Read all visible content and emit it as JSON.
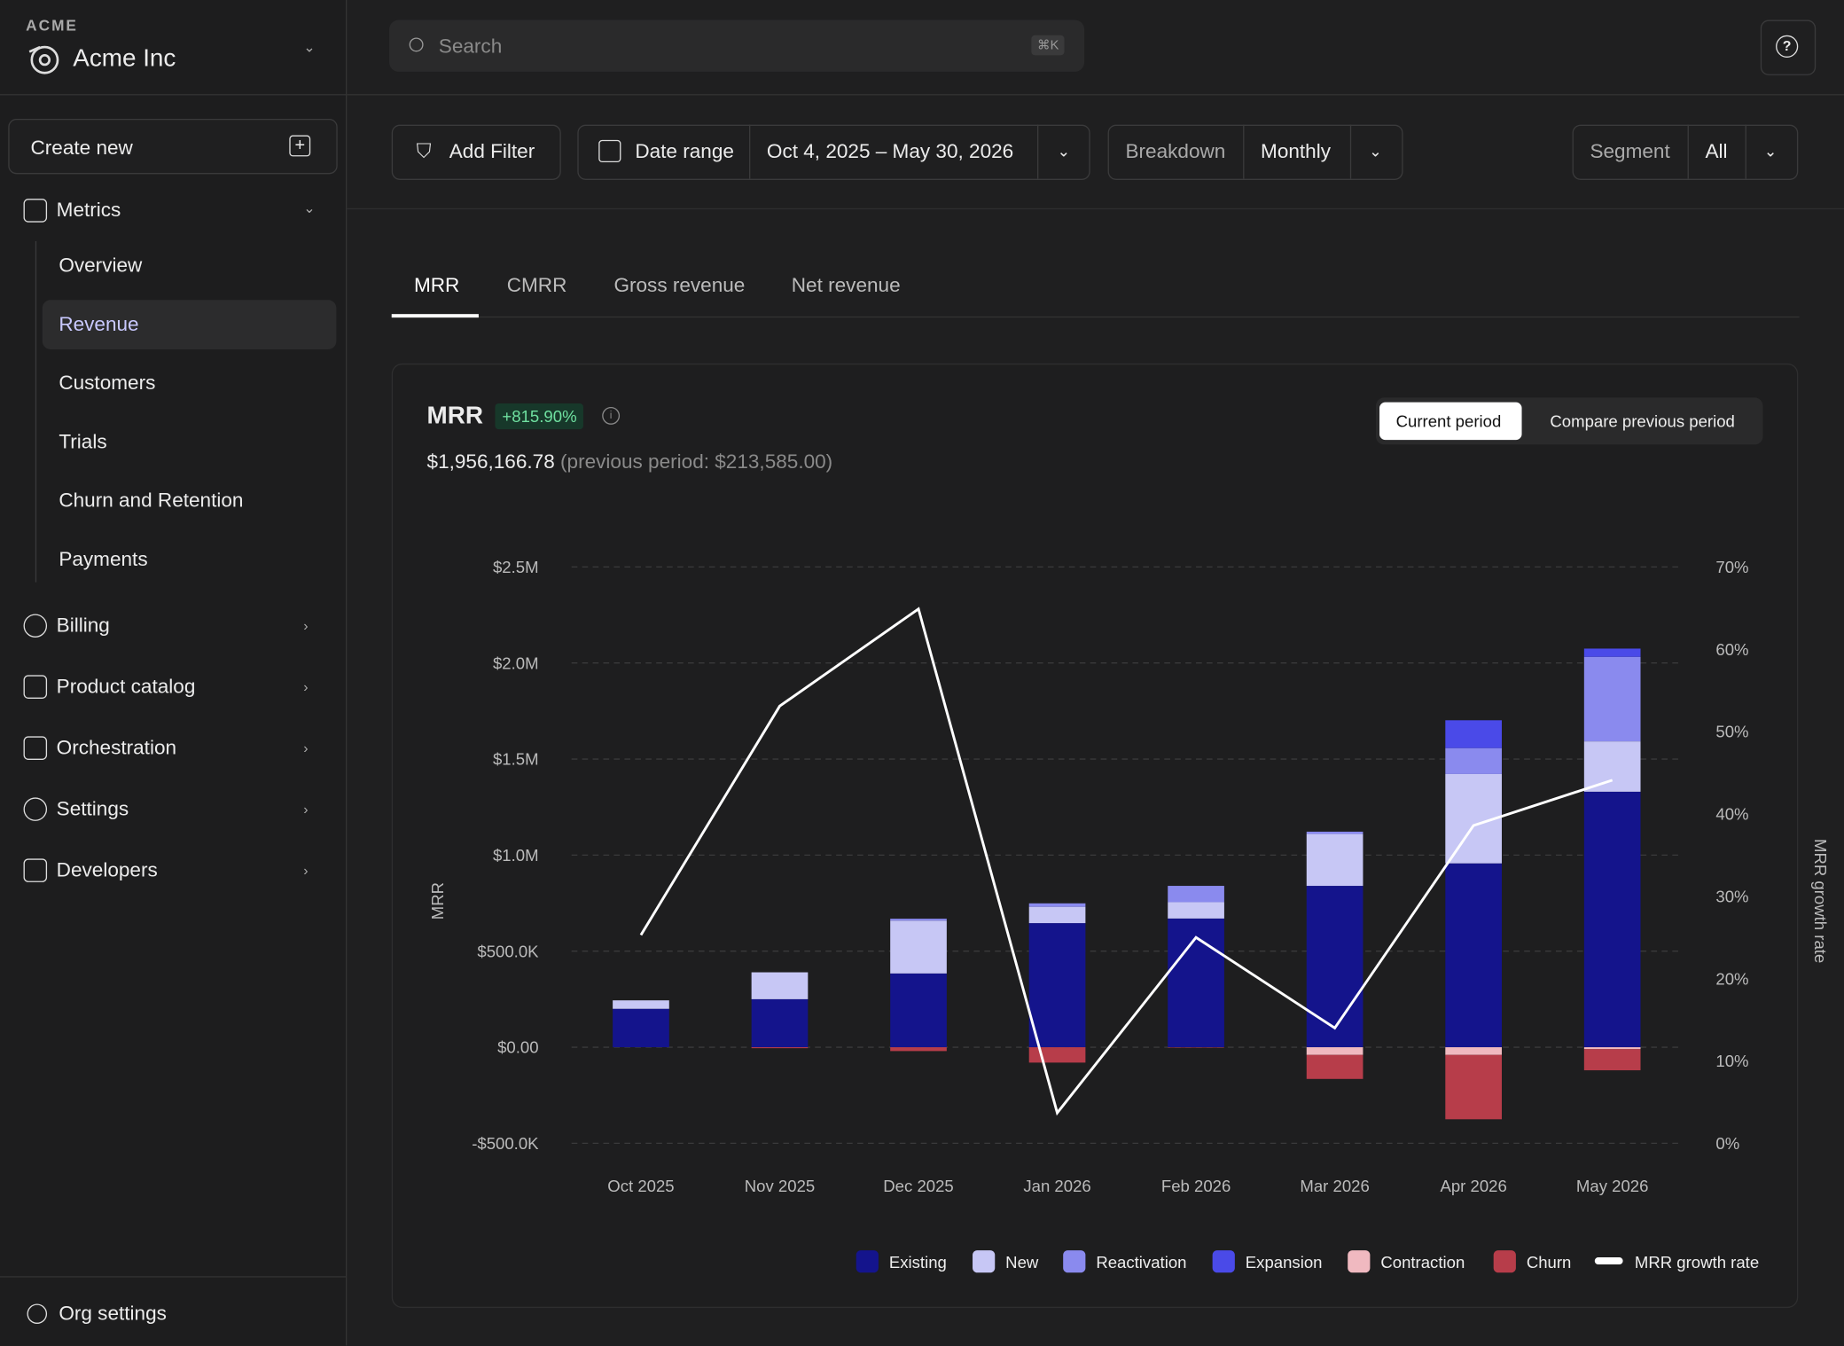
{
  "sidebar": {
    "org_label": "ACME",
    "org_name": "Acme Inc",
    "create": "Create new",
    "metrics": {
      "label": "Metrics",
      "children": [
        "Overview",
        "Revenue",
        "Customers",
        "Trials",
        "Churn and Retention",
        "Payments"
      ]
    },
    "nav": [
      "Billing",
      "Product catalog",
      "Orchestration",
      "Settings",
      "Developers"
    ],
    "footer": "Org settings"
  },
  "header": {
    "search": "Search",
    "shortcut": "⌘K"
  },
  "filters": {
    "add_filter": "Add Filter",
    "date_label": "Date range",
    "date_value": "Oct 4, 2025 – May 30, 2026",
    "breakdown_label": "Breakdown",
    "breakdown_value": "Monthly",
    "segment_label": "Segment",
    "segment_value": "All"
  },
  "tabs": [
    "MRR",
    "CMRR",
    "Gross revenue",
    "Net revenue"
  ],
  "card": {
    "title": "MRR",
    "change": "+815.90%",
    "value": "$1,956,166.78",
    "previous": "(previous period: $213,585.00)",
    "toggle": [
      "Current period",
      "Compare previous period"
    ]
  },
  "chart_data": {
    "type": "bar",
    "stacked": true,
    "y_label": "MRR",
    "y2_label": "MRR growth rate",
    "categories": [
      "Oct 2025",
      "Nov 2025",
      "Dec 2025",
      "Jan 2026",
      "Feb 2026",
      "Mar 2026",
      "Apr 2026",
      "May 2026"
    ],
    "ylim": [
      -500000,
      2500000
    ],
    "yticks": [
      {
        "value": -500000,
        "label": "-$500.0K"
      },
      {
        "value": 0,
        "label": "$0.00"
      },
      {
        "value": 500000,
        "label": "$500.0K"
      },
      {
        "value": 1000000,
        "label": "$1.0M"
      },
      {
        "value": 1500000,
        "label": "$1.5M"
      },
      {
        "value": 2000000,
        "label": "$2.0M"
      },
      {
        "value": 2500000,
        "label": "$2.5M"
      }
    ],
    "y2lim": [
      0,
      70
    ],
    "y2ticks": [
      {
        "value": 0,
        "label": "0%"
      },
      {
        "value": 10,
        "label": "10%"
      },
      {
        "value": 20,
        "label": "20%"
      },
      {
        "value": 30,
        "label": "30%"
      },
      {
        "value": 40,
        "label": "40%"
      },
      {
        "value": 50,
        "label": "50%"
      },
      {
        "value": 60,
        "label": "60%"
      },
      {
        "value": 70,
        "label": "70%"
      }
    ],
    "grid": true,
    "series": [
      {
        "name": "Existing",
        "color": "#14148c",
        "values": [
          200000,
          250000,
          384000,
          646000,
          670000,
          840000,
          957000,
          1330000
        ]
      },
      {
        "name": "New",
        "color": "#c7c7f5",
        "values": [
          44000,
          140000,
          275000,
          85000,
          85000,
          270000,
          465000,
          262000
        ]
      },
      {
        "name": "Reactivation",
        "color": "#8a8aee",
        "values": [
          0,
          0,
          10000,
          18000,
          85000,
          12000,
          135000,
          440000
        ]
      },
      {
        "name": "Expansion",
        "color": "#4a4ae8",
        "values": [
          0,
          0,
          0,
          0,
          0,
          0,
          145000,
          43000
        ]
      },
      {
        "name": "Contraction",
        "color": "#f0b9c0",
        "values": [
          0,
          0,
          0,
          0,
          0,
          -40000,
          -40000,
          -10000
        ]
      },
      {
        "name": "Churn",
        "color": "#b73d4a",
        "values": [
          0,
          -5000,
          -20000,
          -80000,
          -2000,
          -125000,
          -335000,
          -110000
        ]
      },
      {
        "name": "MRR growth rate",
        "color": "#ffffff",
        "type": "line",
        "axis": "y2",
        "values": [
          25.3,
          53.1,
          64.9,
          3.7,
          25,
          14,
          38.6,
          44.1
        ]
      }
    ]
  }
}
